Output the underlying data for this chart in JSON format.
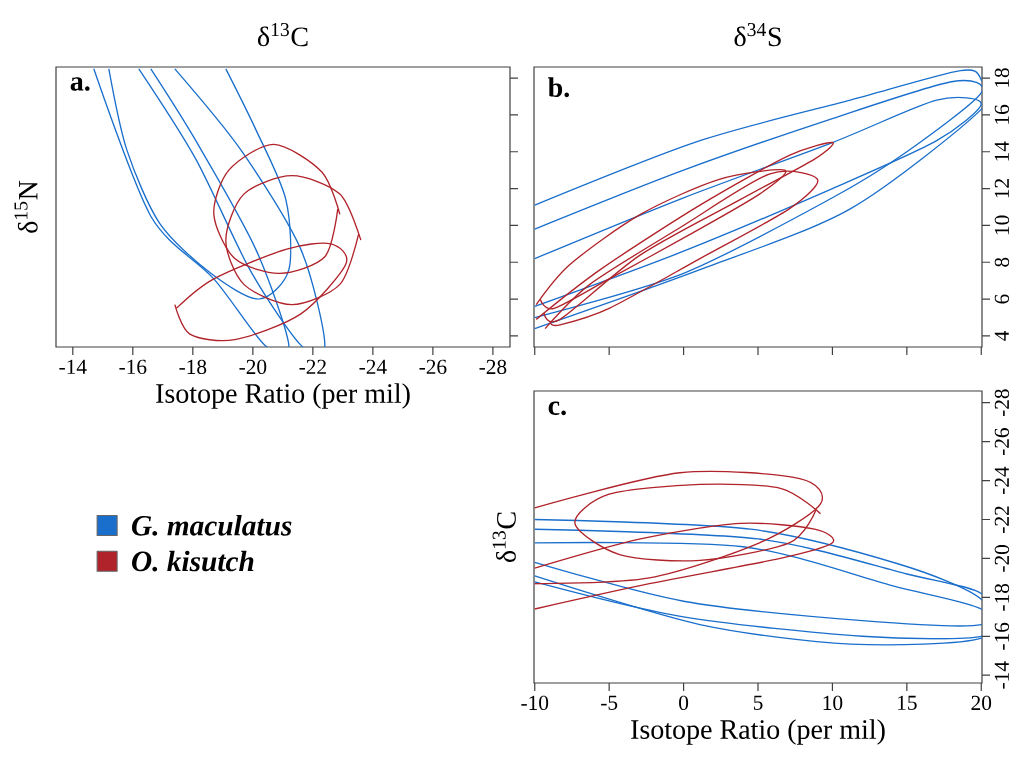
{
  "chart_data": [
    {
      "type": "line",
      "title": "δ$^{13}$C",
      "xlabel": "Isotope Ratio (per mil)",
      "ylabel": "δ$^{15}$N",
      "annotations": [
        "a."
      ],
      "xlim": [
        -13.44,
        -28.57
      ],
      "ylim": [
        3.4,
        18.6
      ],
      "xticks": [
        -14,
        -16,
        -18,
        -20,
        -22,
        -24,
        -26,
        -28
      ],
      "yticks": [
        4,
        6,
        8,
        10,
        12,
        14,
        16,
        18
      ],
      "tick_labels": "x",
      "marker": "none",
      "legend": "bottom left",
      "series": [
        {
          "name": "*G. maculatus*",
          "color": "#1a6fcc",
          "x": [
            -15.2,
            -15.8,
            -16.9,
            -18.6,
            -20.2,
            -21.2,
            -21.1,
            -20.1,
            -19.1
          ],
          "values": [
            18.5,
            14.1,
            10.1,
            7.4,
            6.0,
            7.6,
            11.4,
            15.2,
            18.5
          ]
        },
        {
          "color": "#1a6fcc",
          "x": [
            -14.7,
            -16.6,
            -18.7,
            -20.4,
            -21.2,
            -20.1,
            -18.1,
            -16.6
          ],
          "values": [
            18.5,
            10.5,
            7.1,
            3.5,
            3.5,
            8.7,
            14.6,
            18.5
          ]
        },
        {
          "color": "#1a6fcc",
          "x": [
            -17.4,
            -19.6,
            -21.6,
            -22.4,
            -21.6,
            -19.9,
            -18.1,
            -16.2
          ],
          "values": [
            18.5,
            14.1,
            8.7,
            3.5,
            3.5,
            7.6,
            13.6,
            18.5
          ]
        },
        {
          "name": "*O. kisutch*",
          "color": "#b0232a",
          "x": [
            -23.6,
            -22.9,
            -21.3,
            -19.7,
            -19.1,
            -19.7,
            -21.3,
            -22.9,
            -23.52
          ],
          "values": [
            9.2,
            11.7,
            12.7,
            11.7,
            9.2,
            6.8,
            5.7,
            6.8,
            9.5
          ]
        },
        {
          "color": "#b0232a",
          "x": [
            -17.4,
            -17.9,
            -19.4,
            -21.6,
            -23.1,
            -22.6,
            -21.1,
            -18.7,
            -17.46
          ],
          "values": [
            5.7,
            4.1,
            3.8,
            5.2,
            7.9,
            9.0,
            8.7,
            7.1,
            5.51
          ]
        },
        {
          "color": "#b0232a",
          "x": [
            -22.9,
            -22.3,
            -20.7,
            -19.2,
            -18.7,
            -19.4,
            -20.9,
            -22.4,
            -22.83
          ],
          "values": [
            10.6,
            12.9,
            14.4,
            13.0,
            10.6,
            8.2,
            7.4,
            8.3,
            10.88
          ]
        }
      ]
    },
    {
      "type": "line",
      "title": "δ$^{34}$S",
      "annotations": [
        "b."
      ],
      "xlim": [
        -10.05,
        20.05
      ],
      "ylim": [
        3.4,
        18.6
      ],
      "xticks": [
        -10,
        -5,
        0,
        5,
        10,
        15,
        20
      ],
      "yticks": [
        4,
        6,
        8,
        10,
        12,
        14,
        16,
        18
      ],
      "tick_labels": "y",
      "marker": "none",
      "series": [
        {
          "color": "#1a6fcc",
          "x": [
            -10,
            1.1,
            11.2,
            18.6,
            20,
            20,
            11.2,
            1.1,
            -10
          ],
          "values": [
            11.1,
            14.6,
            16.8,
            18.4,
            17.9,
            16.3,
            10.9,
            7.6,
            4.4
          ]
        },
        {
          "color": "#1a6fcc",
          "x": [
            -10,
            0,
            10,
            17,
            20,
            17,
            10,
            0,
            -10
          ],
          "values": [
            8.2,
            11.5,
            14.5,
            16.8,
            16.6,
            14.6,
            12.0,
            8.6,
            5.6
          ]
        },
        {
          "color": "#1a6fcc",
          "x": [
            -10,
            0,
            10,
            18,
            20,
            15,
            10,
            0,
            -10
          ],
          "values": [
            9.8,
            13.0,
            15.8,
            17.8,
            17.2,
            14.0,
            11.5,
            7.4,
            5.0
          ]
        },
        {
          "color": "#b0232a",
          "x": [
            -9.9,
            -7.6,
            -2.9,
            2.4,
            6.8,
            5.1,
            0.4,
            -5.0,
            -8.7,
            -9.62
          ],
          "values": [
            5.7,
            7.9,
            10.6,
            12.5,
            13.0,
            11.7,
            9.5,
            7.1,
            5.5,
            5.96
          ]
        },
        {
          "color": "#b0232a",
          "x": [
            -9.9,
            -5.6,
            1.1,
            7.1,
            10.0,
            8.8,
            3.8,
            -2.9,
            -8.3,
            -9.38
          ],
          "values": [
            4.9,
            7.6,
            11.1,
            13.8,
            14.5,
            13.6,
            11.4,
            8.4,
            4.9,
            5.22
          ]
        },
        {
          "color": "#b0232a",
          "x": [
            -9.3,
            -6.3,
            -0.2,
            5.8,
            9.0,
            7.1,
            1.1,
            -5.0,
            -8.3,
            -8.94
          ],
          "values": [
            4.4,
            6.8,
            9.9,
            12.8,
            12.5,
            10.9,
            8.2,
            5.5,
            4.6,
            4.69
          ]
        }
      ]
    },
    {
      "type": "line",
      "xlabel": "Isotope Ratio (per mil)",
      "ylabel": "δ$^{13}$C",
      "annotations": [
        "c."
      ],
      "xlim": [
        -10.05,
        20.05
      ],
      "ylim": [
        -13.6,
        -28.6
      ],
      "xticks": [
        -10,
        -5,
        0,
        5,
        10,
        15,
        20
      ],
      "yticks": [
        -14,
        -16,
        -18,
        -20,
        -22,
        -24,
        -26,
        -28
      ],
      "marker": "none",
      "series": [
        {
          "color": "#1a6fcc",
          "x": [
            -10,
            4.5,
            14.5,
            20,
            20,
            11.2,
            1.1,
            -10
          ],
          "values": [
            -22.0,
            -21.5,
            -19.7,
            -17.9,
            -15.9,
            -15.6,
            -16.6,
            -19.1
          ]
        },
        {
          "color": "#1a6fcc",
          "x": [
            -10,
            4,
            14,
            20,
            20,
            12,
            0,
            -10
          ],
          "values": [
            -20.8,
            -20.6,
            -18.6,
            -17.4,
            -16.0,
            -16.0,
            -17.0,
            -18.8
          ]
        },
        {
          "color": "#1a6fcc",
          "x": [
            -10,
            5,
            15,
            20,
            20,
            12,
            0,
            -10
          ],
          "values": [
            -21.5,
            -21.0,
            -19.2,
            -18.2,
            -16.6,
            -16.8,
            -17.8,
            -19.8
          ]
        },
        {
          "color": "#b0232a",
          "x": [
            9.2,
            6.5,
            1.1,
            -5.0,
            -7.3,
            -4.3,
            1.1,
            7.1,
            8.88
          ],
          "values": [
            -22.3,
            -23.6,
            -23.8,
            -23.3,
            -21.8,
            -20.2,
            -19.9,
            -20.8,
            -22.46
          ]
        },
        {
          "color": "#b0232a",
          "x": [
            -10,
            -2.3,
            6.5,
            10.0,
            8.8,
            3.8,
            -2.9,
            -10
          ],
          "values": [
            -17.4,
            -18.7,
            -20.0,
            -20.8,
            -21.5,
            -21.8,
            -21.0,
            -19.5
          ]
        },
        {
          "color": "#b0232a",
          "x": [
            -10,
            -0.25,
            7.8,
            9.2,
            5.1,
            -2.3,
            -10
          ],
          "values": [
            -22.6,
            -24.4,
            -24.1,
            -22.8,
            -20.8,
            -19.0,
            -18.7
          ]
        }
      ]
    }
  ]
}
